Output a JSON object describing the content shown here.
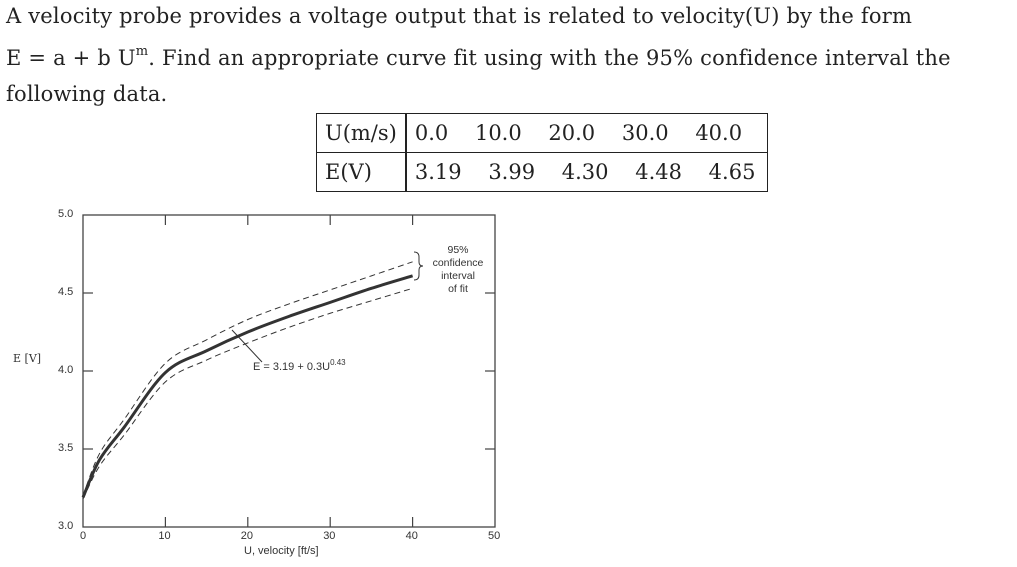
{
  "problem": {
    "line1": "A velocity probe provides a voltage output that is related to velocity(U) by the form",
    "formula_lhs": "E = a + b U",
    "formula_exp": "m",
    "line2_rest": ". Find an appropriate curve fit using with the 95% confidence interval the",
    "line3": "following data."
  },
  "table": {
    "row_u_label": "U(m/s)",
    "row_u_values": [
      "0.0",
      "10.0",
      "20.0",
      "30.0",
      "40.0"
    ],
    "row_e_label": "E(V)",
    "row_e_values": [
      "3.19",
      "3.99",
      "4.30",
      "4.48",
      "4.65"
    ]
  },
  "chart_data": {
    "type": "line",
    "title": "",
    "xlabel": "U, velocity [ft/s]",
    "ylabel": "E [V]",
    "xlim": [
      0,
      50
    ],
    "ylim": [
      3.0,
      5.0
    ],
    "x_ticks": [
      "0",
      "10",
      "20",
      "30",
      "40",
      "50"
    ],
    "y_ticks": [
      "3.0",
      "3.5",
      "4.0",
      "4.5",
      "5.0"
    ],
    "grid": false,
    "series": [
      {
        "name": "fit",
        "style": "solid-thick",
        "x": [
          0,
          2,
          5,
          10,
          15,
          20,
          25,
          30,
          35,
          40
        ],
        "values": [
          3.19,
          3.43,
          3.64,
          3.99,
          4.13,
          4.25,
          4.35,
          4.44,
          4.53,
          4.61
        ]
      },
      {
        "name": "upper 95% bound",
        "style": "dashed",
        "x": [
          0,
          2,
          5,
          10,
          15,
          20,
          25,
          30,
          35,
          40
        ],
        "values": [
          3.2,
          3.47,
          3.69,
          4.05,
          4.2,
          4.33,
          4.43,
          4.52,
          4.61,
          4.7
        ]
      },
      {
        "name": "lower 95% bound",
        "style": "dashed",
        "x": [
          0,
          2,
          5,
          10,
          15,
          20,
          25,
          30,
          35,
          40
        ],
        "values": [
          3.18,
          3.39,
          3.59,
          3.93,
          4.07,
          4.18,
          4.28,
          4.37,
          4.45,
          4.53
        ]
      }
    ],
    "annotations": [
      {
        "text": "E = 3.19 + 0.3U^0.43",
        "equation_main": "E = 3.19 + 0.3U",
        "equation_exp": "0.43",
        "points_to": [
          12,
          4.25
        ]
      },
      {
        "text": "95% confidence interval of fit",
        "lines": [
          "95%",
          "confidence",
          "interval",
          "of fit"
        ]
      }
    ]
  }
}
